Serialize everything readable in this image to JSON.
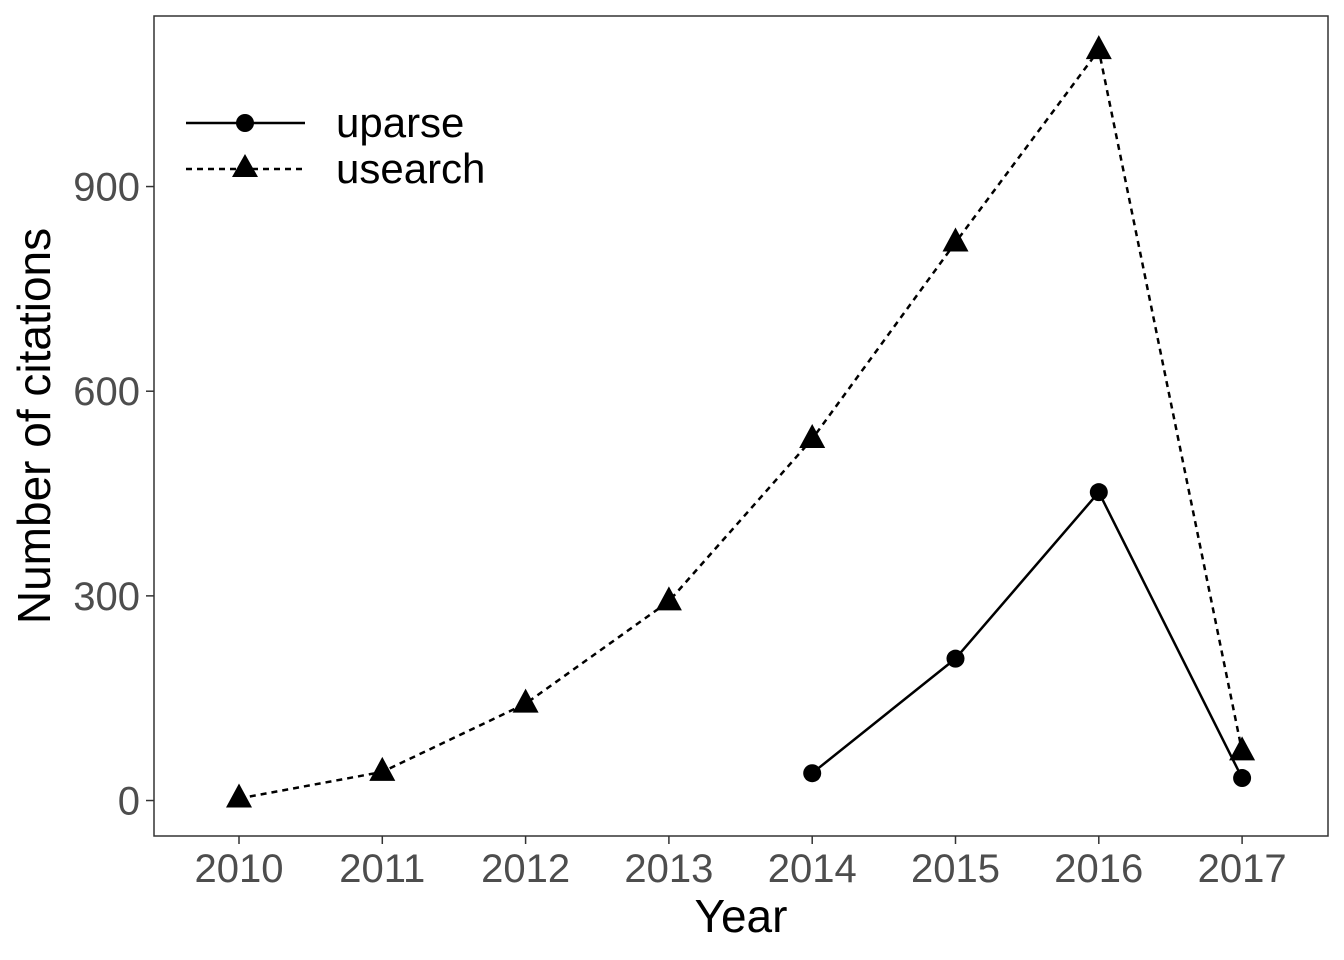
{
  "chart_data": {
    "type": "line",
    "xlabel": "Year",
    "ylabel": "Number of citations",
    "categories": [
      "2010",
      "2011",
      "2012",
      "2013",
      "2014",
      "2015",
      "2016",
      "2017"
    ],
    "yticks": [
      0,
      300,
      600,
      900
    ],
    "ylim": [
      -52,
      1150
    ],
    "grid": false,
    "legend_position": "top-left",
    "series": [
      {
        "name": "uparse",
        "marker": "circle",
        "line_style": "solid",
        "color": "#000000",
        "values": [
          null,
          null,
          null,
          null,
          40,
          208,
          452,
          33
        ]
      },
      {
        "name": "usearch",
        "marker": "triangle",
        "line_style": "dotted",
        "color": "#000000",
        "values": [
          3,
          42,
          142,
          292,
          530,
          818,
          1100,
          72
        ]
      }
    ]
  }
}
